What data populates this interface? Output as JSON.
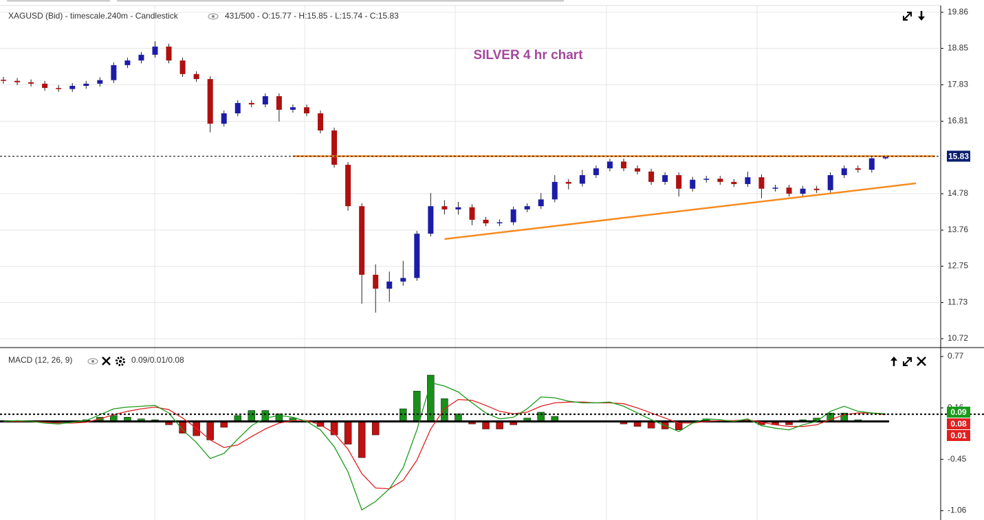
{
  "chart_data": [
    {
      "type": "candlestick",
      "title": "SILVER 4 hr chart",
      "header": {
        "symbol": "XAGUSD (Bid) - timescale.240m - Candlestick",
        "info": "431/500 - O:15.77 - H:15.85 - L:15.74 - C:15.83"
      },
      "open": [
        17.97,
        17.94,
        17.9,
        17.86,
        17.74,
        17.71,
        17.8,
        17.86,
        17.96,
        18.38,
        18.51,
        18.67,
        18.9,
        18.51,
        18.13,
        17.99,
        16.74,
        17.03,
        17.32,
        17.28,
        17.51,
        17.13,
        17.2,
        17.03,
        16.55,
        15.59,
        14.43,
        12.51,
        12.12,
        12.32,
        12.42,
        13.66,
        14.43,
        14.34,
        14.4,
        14.05,
        13.95,
        13.98,
        14.34,
        14.43,
        14.62,
        15.11,
        15.06,
        15.3,
        15.49,
        15.68,
        15.49,
        15.4,
        15.11,
        15.3,
        14.92,
        15.17,
        15.2,
        15.11,
        15.05,
        15.24,
        14.92,
        14.95,
        14.78,
        14.92,
        14.88,
        15.3,
        15.49,
        15.45,
        15.77
      ],
      "high": [
        18.05,
        18.02,
        17.98,
        17.94,
        17.82,
        17.88,
        17.94,
        18.04,
        18.46,
        18.59,
        18.75,
        19.05,
        18.98,
        18.59,
        18.21,
        18.07,
        17.11,
        17.4,
        17.4,
        17.59,
        17.59,
        17.28,
        17.28,
        17.11,
        16.63,
        15.67,
        14.51,
        12.8,
        12.6,
        12.9,
        13.74,
        14.8,
        14.6,
        14.55,
        14.48,
        14.13,
        14.06,
        14.42,
        14.51,
        14.8,
        15.3,
        15.19,
        15.45,
        15.57,
        15.76,
        15.76,
        15.57,
        15.48,
        15.38,
        15.38,
        15.25,
        15.28,
        15.28,
        15.19,
        15.4,
        15.32,
        15.03,
        15.03,
        15.0,
        15.0,
        15.38,
        15.57,
        15.57,
        15.85,
        15.85
      ],
      "low": [
        17.86,
        17.82,
        17.78,
        17.66,
        17.63,
        17.63,
        17.72,
        17.78,
        17.88,
        18.3,
        18.43,
        18.59,
        18.43,
        18.05,
        17.91,
        16.5,
        16.66,
        16.95,
        17.2,
        17.2,
        16.8,
        17.05,
        16.95,
        16.47,
        15.51,
        14.3,
        11.7,
        11.45,
        11.75,
        12.2,
        12.34,
        13.58,
        14.2,
        14.2,
        13.9,
        13.87,
        13.87,
        13.9,
        14.26,
        14.35,
        14.54,
        14.9,
        14.98,
        15.22,
        15.41,
        15.41,
        15.32,
        15.03,
        15.03,
        14.7,
        14.84,
        15.09,
        15.03,
        14.97,
        14.97,
        14.65,
        14.84,
        14.7,
        14.7,
        14.8,
        14.8,
        15.22,
        15.37,
        15.37,
        15.74
      ],
      "close": [
        17.94,
        17.9,
        17.86,
        17.74,
        17.71,
        17.8,
        17.86,
        17.96,
        18.38,
        18.51,
        18.67,
        18.9,
        18.51,
        18.13,
        17.99,
        16.74,
        17.03,
        17.32,
        17.28,
        17.51,
        17.13,
        17.2,
        17.03,
        16.55,
        15.59,
        14.43,
        12.51,
        12.12,
        12.32,
        12.42,
        13.66,
        14.43,
        14.34,
        14.4,
        14.05,
        13.95,
        13.98,
        14.34,
        14.43,
        14.62,
        15.11,
        15.06,
        15.3,
        15.49,
        15.68,
        15.49,
        15.4,
        15.11,
        15.3,
        14.92,
        15.17,
        15.2,
        15.11,
        15.05,
        15.24,
        14.92,
        14.95,
        14.78,
        14.92,
        14.88,
        15.3,
        15.49,
        15.45,
        15.77,
        15.83
      ],
      "up_color": "#1c1ca8",
      "down_color": "#b01010",
      "xlim": [
        -0.25,
        68
      ],
      "ylim": [
        10.49,
        20.05
      ],
      "yticks": [
        10.72,
        11.73,
        12.75,
        13.76,
        14.78,
        16.81,
        17.83,
        18.85,
        19.86
      ],
      "grid": true,
      "trendlines": [
        {
          "x": [
            21,
            67.6
          ],
          "y": [
            15.83,
            15.83
          ],
          "color": "#f68b1f"
        },
        {
          "x": [
            32,
            66.2
          ],
          "y": [
            13.51,
            15.07
          ],
          "color": "#f68b1f"
        }
      ]
    },
    {
      "type": "macd",
      "title": "MACD (12, 26, 9)",
      "readout": "0.09/0.01/0.08",
      "macd": {
        "color": "#1a9a1a",
        "values": [
          0.0,
          0.01,
          0.0,
          -0.02,
          -0.03,
          -0.01,
          0.01,
          0.08,
          0.15,
          0.17,
          0.18,
          0.19,
          0.1,
          -0.1,
          -0.25,
          -0.44,
          -0.38,
          -0.21,
          -0.05,
          0.04,
          0.07,
          0.05,
          0.0,
          -0.1,
          -0.3,
          -0.6,
          -1.05,
          -0.95,
          -0.8,
          -0.55,
          -0.1,
          0.46,
          0.42,
          0.35,
          0.22,
          0.1,
          0.03,
          0.05,
          0.15,
          0.29,
          0.28,
          0.24,
          0.22,
          0.22,
          0.23,
          0.18,
          0.1,
          0.02,
          -0.05,
          -0.12,
          -0.02,
          0.03,
          0.02,
          0.0,
          0.03,
          -0.05,
          -0.08,
          -0.1,
          -0.04,
          0.0,
          0.12,
          0.18,
          0.12,
          0.1,
          0.09
        ]
      },
      "signal": {
        "color": "#e02020",
        "values": [
          0.0,
          0.0,
          0.0,
          -0.01,
          -0.02,
          -0.02,
          -0.01,
          0.03,
          0.08,
          0.12,
          0.15,
          0.17,
          0.14,
          0.04,
          -0.08,
          -0.22,
          -0.31,
          -0.28,
          -0.18,
          -0.09,
          -0.02,
          0.01,
          0.01,
          -0.04,
          -0.14,
          -0.33,
          -0.62,
          -0.79,
          -0.8,
          -0.7,
          -0.46,
          -0.09,
          0.15,
          0.26,
          0.25,
          0.19,
          0.12,
          0.09,
          0.11,
          0.18,
          0.22,
          0.23,
          0.23,
          0.22,
          0.22,
          0.21,
          0.16,
          0.1,
          0.04,
          -0.02,
          -0.02,
          0.0,
          0.01,
          0.01,
          0.02,
          -0.01,
          -0.04,
          -0.06,
          -0.06,
          -0.04,
          0.02,
          0.08,
          0.1,
          0.1,
          0.08
        ]
      },
      "histogram": {
        "up_color": "#1a8f1a",
        "down_color": "#c01010",
        "values": [
          0.0,
          0.01,
          0.0,
          -0.01,
          -0.01,
          0.01,
          0.02,
          0.05,
          0.07,
          0.05,
          0.03,
          0.02,
          -0.04,
          -0.14,
          -0.17,
          -0.22,
          -0.07,
          0.07,
          0.13,
          0.13,
          0.09,
          0.04,
          -0.01,
          -0.06,
          -0.16,
          -0.27,
          -0.43,
          -0.16,
          0.0,
          0.15,
          0.36,
          0.55,
          0.27,
          0.09,
          -0.03,
          -0.09,
          -0.09,
          -0.04,
          0.04,
          0.11,
          0.06,
          0.01,
          -0.01,
          0.0,
          0.01,
          -0.03,
          -0.06,
          -0.08,
          -0.09,
          -0.1,
          0.0,
          0.03,
          0.01,
          -0.01,
          0.01,
          -0.04,
          -0.04,
          -0.04,
          0.02,
          0.04,
          0.1,
          0.1,
          0.02,
          0.0,
          0.01
        ]
      },
      "xlim": [
        -0.25,
        68
      ],
      "ylim": [
        -1.17,
        0.86
      ],
      "yticks": [
        -1.06,
        -0.45,
        0.16,
        0.77
      ]
    }
  ]
}
